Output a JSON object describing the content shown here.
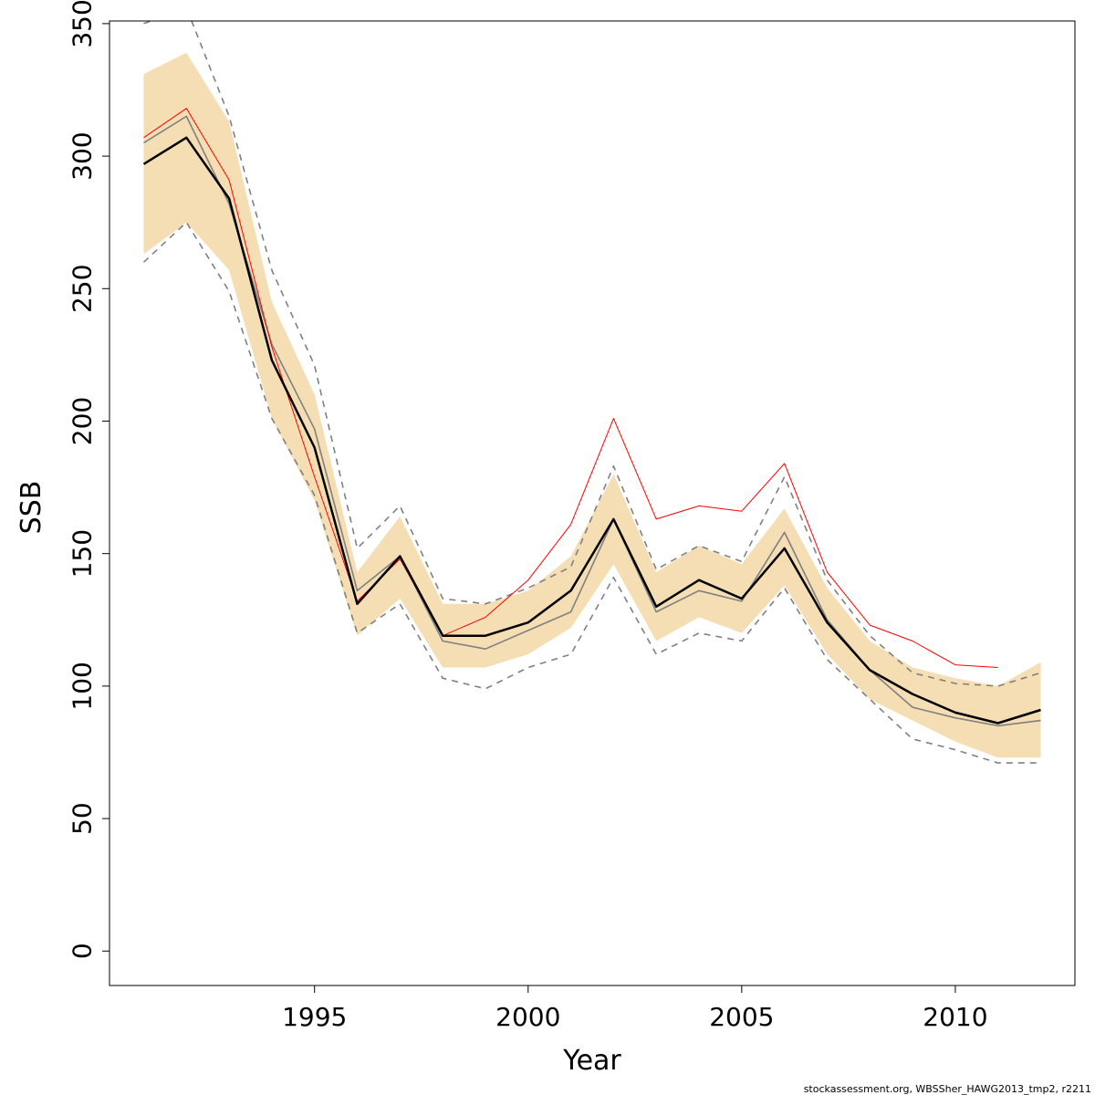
{
  "chart_data": {
    "type": "line",
    "xlabel": "Year",
    "ylabel": "SSB",
    "xlim": [
      1990.2,
      2012.8
    ],
    "ylim": [
      -13,
      351
    ],
    "x_ticks": [
      1995,
      2000,
      2005,
      2010
    ],
    "y_ticks": [
      0,
      50,
      100,
      150,
      200,
      250,
      300,
      350
    ],
    "grid": false,
    "legend": "none",
    "footer": "stockassessment.org, WBSSher_HAWG2013_tmp2, r2211",
    "colors": {
      "band": "#F5DEB3",
      "estimate": "#000000",
      "alt_run": "#808080",
      "red_run": "#FF0000",
      "dashed_bounds": "#808080",
      "frame": "#000000"
    },
    "x": [
      1991,
      1992,
      1993,
      1994,
      1995,
      1996,
      1997,
      1998,
      1999,
      2000,
      2001,
      2002,
      2003,
      2004,
      2005,
      2006,
      2007,
      2008,
      2009,
      2010,
      2011,
      2012
    ],
    "band_upper": [
      331,
      339,
      313,
      245,
      210,
      143,
      164,
      131,
      131,
      136,
      149,
      180,
      143,
      153,
      146,
      167,
      137,
      117,
      107,
      103,
      100,
      109
    ],
    "band_lower": [
      263,
      275,
      257,
      201,
      170,
      119,
      133,
      107,
      107,
      112,
      122,
      146,
      117,
      126,
      120,
      138,
      112,
      95,
      87,
      79,
      73,
      73
    ],
    "series": [
      {
        "values": [
          297,
          307,
          284,
          223,
          190,
          131,
          149,
          119,
          119,
          124,
          136,
          163,
          130,
          140,
          133,
          152,
          124,
          106,
          97,
          90,
          86,
          91
        ]
      },
      {
        "values": [
          305,
          315,
          282,
          229,
          197,
          136,
          149,
          117,
          114,
          121,
          128,
          163,
          128,
          136,
          132,
          158,
          125,
          106,
          92,
          88,
          85,
          87
        ]
      },
      {
        "values": [
          307,
          318,
          291,
          228,
          179,
          132,
          148,
          119,
          126,
          140,
          161,
          201,
          163,
          168,
          166,
          184,
          143,
          123,
          117,
          108,
          107,
          null
        ]
      },
      {
        "values": [
          350,
          356,
          315,
          257,
          221,
          152,
          168,
          133,
          131,
          137,
          145,
          183,
          144,
          153,
          147,
          179,
          140,
          119,
          105,
          101,
          100,
          105
        ]
      },
      {
        "values": [
          260,
          275,
          249,
          201,
          172,
          120,
          131,
          103,
          99,
          107,
          112,
          141,
          112,
          120,
          117,
          137,
          110,
          95,
          80,
          76,
          71,
          71
        ]
      }
    ]
  }
}
